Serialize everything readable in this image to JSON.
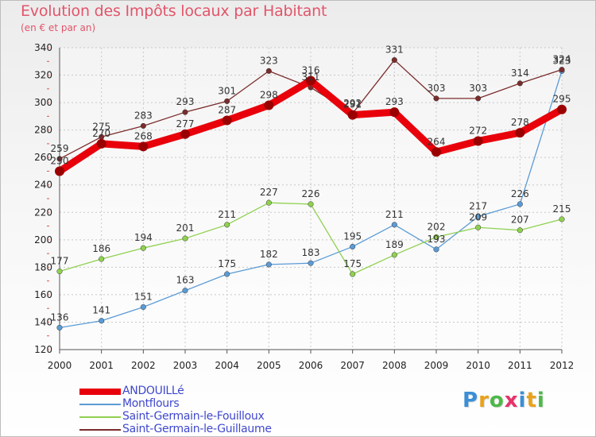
{
  "header": {
    "title": "Evolution des Impôts locaux par Habitant",
    "subtitle": "(en € et par an)"
  },
  "logo": {
    "text": "Proxiti",
    "colors": [
      "#3a8fd6",
      "#e9a21b",
      "#4db848",
      "#e5326b",
      "#3a8fd6",
      "#e9a21b",
      "#4db848"
    ]
  },
  "chart_data": {
    "type": "line",
    "title": "Evolution des Impôts locaux par Habitant",
    "subtitle": "(en € et par an)",
    "xlabel": "",
    "ylabel": "",
    "x": [
      2000,
      2001,
      2002,
      2003,
      2004,
      2005,
      2006,
      2007,
      2008,
      2009,
      2010,
      2011,
      2012
    ],
    "ylim": [
      120,
      340
    ],
    "yticks": [
      120,
      140,
      160,
      180,
      200,
      220,
      240,
      260,
      280,
      300,
      320,
      340
    ],
    "grid": true,
    "legend_position": "bottom-left",
    "series": [
      {
        "name": "ANDOUILLé",
        "color": "#e8000b",
        "values": [
          250,
          270,
          268,
          277,
          287,
          298,
          316,
          291,
          293,
          264,
          272,
          278,
          295
        ]
      },
      {
        "name": "Montflours",
        "color": "#5b9bd5",
        "values": [
          136,
          141,
          151,
          163,
          175,
          182,
          183,
          195,
          211,
          193,
          217,
          226,
          323
        ]
      },
      {
        "name": "Saint-Germain-le-Fouilloux",
        "color": "#90d150",
        "values": [
          177,
          186,
          194,
          201,
          211,
          227,
          226,
          175,
          189,
          202,
          209,
          207,
          215
        ]
      },
      {
        "name": "Saint-Germain-le-Guillaume",
        "color": "#7b2c2c",
        "values": [
          259,
          275,
          283,
          293,
          301,
          323,
          311,
          292,
          331,
          303,
          303,
          314,
          324
        ]
      }
    ]
  }
}
